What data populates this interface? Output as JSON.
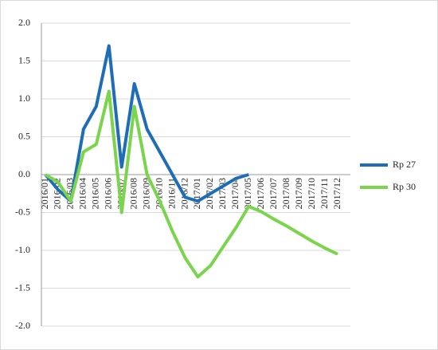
{
  "chart_data": {
    "type": "line",
    "categories": [
      "2016/01",
      "2016/02",
      "2016/03",
      "2016/04",
      "2016/05",
      "2016/06",
      "2016/07",
      "2016/08",
      "2016/09",
      "2016/10",
      "2016/11",
      "2016/12",
      "2017/01",
      "2017/02",
      "2017/03",
      "2017/04",
      "2017/05",
      "2017/06",
      "2017/07",
      "2017/08",
      "2017/09",
      "2017/10",
      "2017/11",
      "2017/12"
    ],
    "series": [
      {
        "name": "Rp 27",
        "color": "#1f6db6",
        "values": [
          0,
          -0.2,
          -0.35,
          0.6,
          0.9,
          1.7,
          0.1,
          1.2,
          0.6,
          0.3,
          0.0,
          -0.3,
          -0.35,
          -0.25,
          -0.15,
          -0.05,
          0.0,
          null,
          null,
          null,
          null,
          null,
          null,
          null
        ]
      },
      {
        "name": "Rp 30",
        "color": "#7ad44c",
        "values": [
          0,
          -0.1,
          -0.35,
          0.3,
          0.4,
          1.1,
          -0.5,
          0.9,
          0.0,
          -0.35,
          -0.75,
          -1.1,
          -1.35,
          -1.2,
          -0.95,
          -0.7,
          -0.42,
          -0.49,
          -0.59,
          -0.68,
          -0.78,
          -0.88,
          -0.97,
          -1.05
        ]
      }
    ],
    "ylim": [
      -2,
      2
    ],
    "yticks": [
      {
        "value": -2,
        "label": "-2.0"
      },
      {
        "value": -1.5,
        "label": "-1.5"
      },
      {
        "value": -1,
        "label": "-1.0"
      },
      {
        "value": -0.5,
        "label": "-0.5"
      },
      {
        "value": 0,
        "label": "0.0"
      },
      {
        "value": 0.5,
        "label": "0.5"
      },
      {
        "value": 1,
        "label": "1.0"
      },
      {
        "value": 1.5,
        "label": "1.5"
      },
      {
        "value": 2,
        "label": "2.0"
      }
    ],
    "grid": true,
    "legend": "right"
  }
}
